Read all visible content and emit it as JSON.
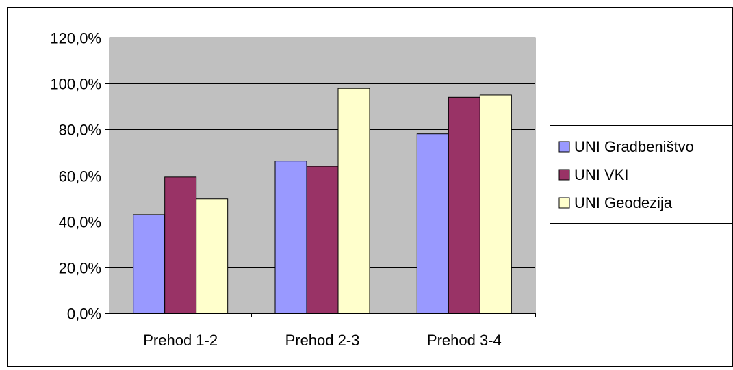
{
  "chart_data": {
    "type": "bar",
    "title": "",
    "xlabel": "",
    "ylabel": "",
    "categories": [
      "Prehod 1-2",
      "Prehod 2-3",
      "Prehod 3-4"
    ],
    "series": [
      {
        "name": "UNI Gradbeništvo",
        "color": "#9999FF",
        "values": [
          42.9,
          66.2,
          78.1
        ]
      },
      {
        "name": "UNI VKI",
        "color": "#993366",
        "values": [
          59.3,
          64.0,
          94.0
        ]
      },
      {
        "name": "UNI Geodezija",
        "color": "#FFFFCC",
        "values": [
          49.8,
          97.9,
          95.0
        ]
      }
    ],
    "ylim": [
      0,
      120
    ],
    "yticks": [
      0,
      20,
      40,
      60,
      80,
      100,
      120
    ],
    "ytick_labels": [
      "0,0%",
      "20,0%",
      "40,0%",
      "60,0%",
      "80,0%",
      "100,0%",
      "120,0%"
    ],
    "plot_background": "#C0C0C0",
    "grid": true,
    "legend_position": "right"
  }
}
